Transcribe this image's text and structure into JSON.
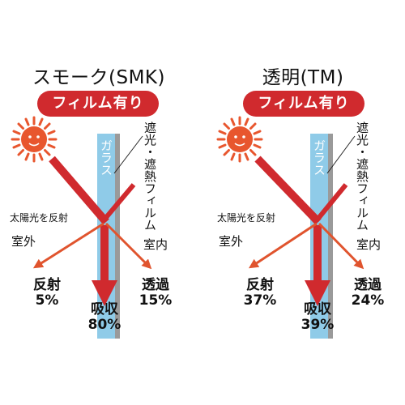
{
  "panels": [
    {
      "title": "スモーク(SMK)",
      "badge": "フィルム有り",
      "glass_label": "ガラス",
      "film_label": "遮光・遮熱フィルム",
      "reflect_note": "太陽光を反射",
      "outdoor": "室外",
      "indoor": "室内",
      "reflect": {
        "label": "反射",
        "value": "5%"
      },
      "absorb": {
        "label": "吸収",
        "value": "80%"
      },
      "transmit": {
        "label": "透過",
        "value": "15%"
      }
    },
    {
      "title": "透明(TM)",
      "badge": "フィルム有り",
      "glass_label": "ガラス",
      "film_label": "遮光・遮熱フィルム",
      "reflect_note": "太陽光を反射",
      "outdoor": "室外",
      "indoor": "室内",
      "reflect": {
        "label": "反射",
        "value": "37%"
      },
      "absorb": {
        "label": "吸収",
        "value": "39%"
      },
      "transmit": {
        "label": "透過",
        "value": "24%"
      }
    }
  ],
  "colors": {
    "accent": "#d02a2e",
    "sun": "#e8562e",
    "glass": "#8fcbe8",
    "film": "#9a9a9a"
  }
}
